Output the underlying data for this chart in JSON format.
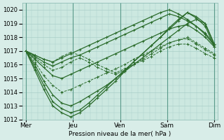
{
  "xlabel": "Pression niveau de la mer( hPa )",
  "background_color": "#d8ede8",
  "plot_bg_color": "#cce8e0",
  "grid_color": "#aacfc8",
  "line_color": "#2a6b2a",
  "ylim": [
    1012,
    1020.5
  ],
  "xlim": [
    -0.08,
    4.08
  ],
  "day_labels": [
    "Mer",
    "Jeu",
    "Ven",
    "Sam",
    "Dim"
  ],
  "day_positions": [
    0,
    1,
    2,
    3,
    4
  ],
  "yticks": [
    1012,
    1013,
    1014,
    1015,
    1016,
    1017,
    1018,
    1019,
    1020
  ],
  "series": [
    {
      "y": [
        1017.0,
        1016.7,
        1016.4,
        1016.2,
        1016.5,
        1016.8,
        1017.1,
        1017.4,
        1017.7,
        1018.0,
        1018.3,
        1018.6,
        1018.9,
        1019.2,
        1019.5,
        1019.8,
        1020.0,
        1019.7,
        1019.3,
        1018.8,
        1018.3,
        1017.5
      ],
      "ls": "-",
      "lw": 0.9
    },
    {
      "y": [
        1017.0,
        1016.6,
        1016.2,
        1015.9,
        1016.2,
        1016.5,
        1016.7,
        1017.0,
        1017.3,
        1017.6,
        1017.9,
        1018.2,
        1018.5,
        1018.8,
        1019.1,
        1019.4,
        1019.7,
        1019.5,
        1019.2,
        1018.8,
        1018.2,
        1017.4
      ],
      "ls": "-",
      "lw": 0.9
    },
    {
      "y": [
        1017.0,
        1016.4,
        1015.8,
        1015.2,
        1015.0,
        1015.3,
        1015.6,
        1015.9,
        1016.2,
        1016.5,
        1016.8,
        1017.1,
        1017.4,
        1017.7,
        1018.0,
        1018.3,
        1018.6,
        1018.8,
        1018.9,
        1018.5,
        1018.0,
        1017.3
      ],
      "ls": "-",
      "lw": 0.9
    },
    {
      "y": [
        1017.0,
        1016.2,
        1015.2,
        1014.5,
        1014.0,
        1014.2,
        1014.5,
        1014.8,
        1015.1,
        1015.4,
        1015.7,
        1016.0,
        1016.4,
        1016.7,
        1017.0,
        1017.3,
        1017.6,
        1017.8,
        1018.0,
        1017.6,
        1017.2,
        1016.8
      ],
      "ls": "--",
      "lw": 0.7
    },
    {
      "y": [
        1017.0,
        1016.0,
        1014.8,
        1013.8,
        1013.2,
        1013.0,
        1013.3,
        1013.7,
        1014.1,
        1014.5,
        1015.0,
        1015.5,
        1016.0,
        1016.5,
        1017.0,
        1017.5,
        1018.0,
        1018.5,
        1019.0,
        1019.3,
        1019.0,
        1017.5
      ],
      "ls": "-",
      "lw": 0.9
    },
    {
      "y": [
        1017.0,
        1015.8,
        1014.5,
        1013.3,
        1012.8,
        1012.5,
        1012.7,
        1013.2,
        1013.8,
        1014.4,
        1015.0,
        1015.6,
        1016.2,
        1016.8,
        1017.4,
        1018.0,
        1018.6,
        1019.2,
        1019.8,
        1019.5,
        1019.0,
        1017.5
      ],
      "ls": "-",
      "lw": 0.9
    },
    {
      "y": [
        1017.0,
        1015.6,
        1014.2,
        1013.0,
        1012.5,
        1012.2,
        1012.5,
        1013.0,
        1013.6,
        1014.2,
        1014.8,
        1015.5,
        1016.2,
        1016.8,
        1017.4,
        1018.0,
        1018.7,
        1019.3,
        1019.8,
        1019.4,
        1018.8,
        1017.3
      ],
      "ls": "-",
      "lw": 0.9
    },
    {
      "y": [
        1017.0,
        1016.5,
        1016.0,
        1015.6,
        1015.8,
        1016.2,
        1016.5,
        1016.2,
        1015.8,
        1015.5,
        1015.3,
        1015.6,
        1016.0,
        1016.4,
        1016.8,
        1017.2,
        1017.6,
        1017.8,
        1017.9,
        1017.5,
        1017.1,
        1016.7
      ],
      "ls": "--",
      "lw": 0.7
    },
    {
      "y": [
        1017.0,
        1016.7,
        1016.4,
        1016.2,
        1016.6,
        1016.9,
        1016.7,
        1016.4,
        1016.0,
        1015.7,
        1015.4,
        1015.7,
        1016.0,
        1016.3,
        1016.6,
        1017.0,
        1017.3,
        1017.5,
        1017.5,
        1017.2,
        1016.8,
        1016.5
      ],
      "ls": "--",
      "lw": 0.7
    }
  ]
}
